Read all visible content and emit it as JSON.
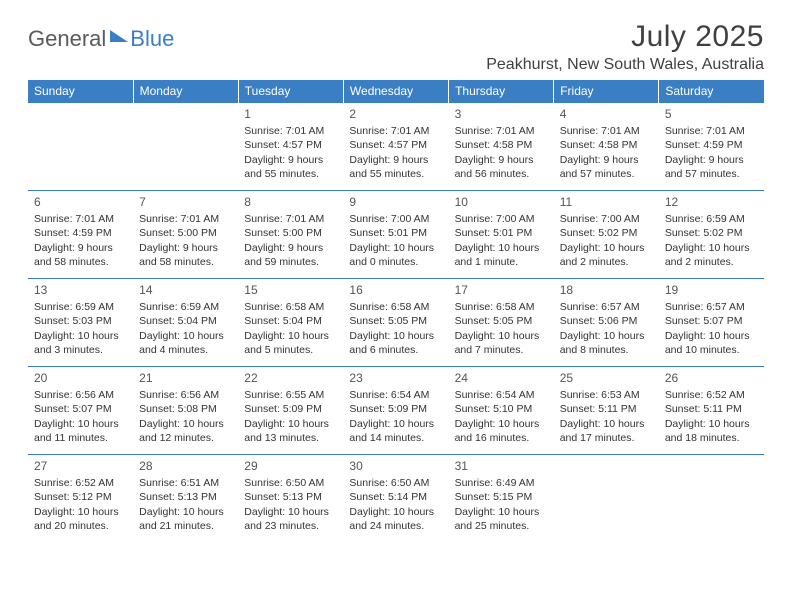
{
  "brand": {
    "part1": "General",
    "part2": "Blue"
  },
  "title": "July 2025",
  "location": "Peakhurst, New South Wales, Australia",
  "colors": {
    "header_bg": "#3a7fc4",
    "header_text": "#ffffff",
    "border": "#3a7fc4",
    "body_text": "#333333",
    "title_text": "#404040"
  },
  "typography": {
    "title_fontsize": 30,
    "location_fontsize": 16,
    "dayheader_fontsize": 12,
    "cell_fontsize": 10.5
  },
  "dayHeaders": [
    "Sunday",
    "Monday",
    "Tuesday",
    "Wednesday",
    "Thursday",
    "Friday",
    "Saturday"
  ],
  "weeks": [
    [
      null,
      null,
      {
        "n": "1",
        "sr": "Sunrise: 7:01 AM",
        "ss": "Sunset: 4:57 PM",
        "dl": "Daylight: 9 hours and 55 minutes."
      },
      {
        "n": "2",
        "sr": "Sunrise: 7:01 AM",
        "ss": "Sunset: 4:57 PM",
        "dl": "Daylight: 9 hours and 55 minutes."
      },
      {
        "n": "3",
        "sr": "Sunrise: 7:01 AM",
        "ss": "Sunset: 4:58 PM",
        "dl": "Daylight: 9 hours and 56 minutes."
      },
      {
        "n": "4",
        "sr": "Sunrise: 7:01 AM",
        "ss": "Sunset: 4:58 PM",
        "dl": "Daylight: 9 hours and 57 minutes."
      },
      {
        "n": "5",
        "sr": "Sunrise: 7:01 AM",
        "ss": "Sunset: 4:59 PM",
        "dl": "Daylight: 9 hours and 57 minutes."
      }
    ],
    [
      {
        "n": "6",
        "sr": "Sunrise: 7:01 AM",
        "ss": "Sunset: 4:59 PM",
        "dl": "Daylight: 9 hours and 58 minutes."
      },
      {
        "n": "7",
        "sr": "Sunrise: 7:01 AM",
        "ss": "Sunset: 5:00 PM",
        "dl": "Daylight: 9 hours and 58 minutes."
      },
      {
        "n": "8",
        "sr": "Sunrise: 7:01 AM",
        "ss": "Sunset: 5:00 PM",
        "dl": "Daylight: 9 hours and 59 minutes."
      },
      {
        "n": "9",
        "sr": "Sunrise: 7:00 AM",
        "ss": "Sunset: 5:01 PM",
        "dl": "Daylight: 10 hours and 0 minutes."
      },
      {
        "n": "10",
        "sr": "Sunrise: 7:00 AM",
        "ss": "Sunset: 5:01 PM",
        "dl": "Daylight: 10 hours and 1 minute."
      },
      {
        "n": "11",
        "sr": "Sunrise: 7:00 AM",
        "ss": "Sunset: 5:02 PM",
        "dl": "Daylight: 10 hours and 2 minutes."
      },
      {
        "n": "12",
        "sr": "Sunrise: 6:59 AM",
        "ss": "Sunset: 5:02 PM",
        "dl": "Daylight: 10 hours and 2 minutes."
      }
    ],
    [
      {
        "n": "13",
        "sr": "Sunrise: 6:59 AM",
        "ss": "Sunset: 5:03 PM",
        "dl": "Daylight: 10 hours and 3 minutes."
      },
      {
        "n": "14",
        "sr": "Sunrise: 6:59 AM",
        "ss": "Sunset: 5:04 PM",
        "dl": "Daylight: 10 hours and 4 minutes."
      },
      {
        "n": "15",
        "sr": "Sunrise: 6:58 AM",
        "ss": "Sunset: 5:04 PM",
        "dl": "Daylight: 10 hours and 5 minutes."
      },
      {
        "n": "16",
        "sr": "Sunrise: 6:58 AM",
        "ss": "Sunset: 5:05 PM",
        "dl": "Daylight: 10 hours and 6 minutes."
      },
      {
        "n": "17",
        "sr": "Sunrise: 6:58 AM",
        "ss": "Sunset: 5:05 PM",
        "dl": "Daylight: 10 hours and 7 minutes."
      },
      {
        "n": "18",
        "sr": "Sunrise: 6:57 AM",
        "ss": "Sunset: 5:06 PM",
        "dl": "Daylight: 10 hours and 8 minutes."
      },
      {
        "n": "19",
        "sr": "Sunrise: 6:57 AM",
        "ss": "Sunset: 5:07 PM",
        "dl": "Daylight: 10 hours and 10 minutes."
      }
    ],
    [
      {
        "n": "20",
        "sr": "Sunrise: 6:56 AM",
        "ss": "Sunset: 5:07 PM",
        "dl": "Daylight: 10 hours and 11 minutes."
      },
      {
        "n": "21",
        "sr": "Sunrise: 6:56 AM",
        "ss": "Sunset: 5:08 PM",
        "dl": "Daylight: 10 hours and 12 minutes."
      },
      {
        "n": "22",
        "sr": "Sunrise: 6:55 AM",
        "ss": "Sunset: 5:09 PM",
        "dl": "Daylight: 10 hours and 13 minutes."
      },
      {
        "n": "23",
        "sr": "Sunrise: 6:54 AM",
        "ss": "Sunset: 5:09 PM",
        "dl": "Daylight: 10 hours and 14 minutes."
      },
      {
        "n": "24",
        "sr": "Sunrise: 6:54 AM",
        "ss": "Sunset: 5:10 PM",
        "dl": "Daylight: 10 hours and 16 minutes."
      },
      {
        "n": "25",
        "sr": "Sunrise: 6:53 AM",
        "ss": "Sunset: 5:11 PM",
        "dl": "Daylight: 10 hours and 17 minutes."
      },
      {
        "n": "26",
        "sr": "Sunrise: 6:52 AM",
        "ss": "Sunset: 5:11 PM",
        "dl": "Daylight: 10 hours and 18 minutes."
      }
    ],
    [
      {
        "n": "27",
        "sr": "Sunrise: 6:52 AM",
        "ss": "Sunset: 5:12 PM",
        "dl": "Daylight: 10 hours and 20 minutes."
      },
      {
        "n": "28",
        "sr": "Sunrise: 6:51 AM",
        "ss": "Sunset: 5:13 PM",
        "dl": "Daylight: 10 hours and 21 minutes."
      },
      {
        "n": "29",
        "sr": "Sunrise: 6:50 AM",
        "ss": "Sunset: 5:13 PM",
        "dl": "Daylight: 10 hours and 23 minutes."
      },
      {
        "n": "30",
        "sr": "Sunrise: 6:50 AM",
        "ss": "Sunset: 5:14 PM",
        "dl": "Daylight: 10 hours and 24 minutes."
      },
      {
        "n": "31",
        "sr": "Sunrise: 6:49 AM",
        "ss": "Sunset: 5:15 PM",
        "dl": "Daylight: 10 hours and 25 minutes."
      },
      null,
      null
    ]
  ]
}
